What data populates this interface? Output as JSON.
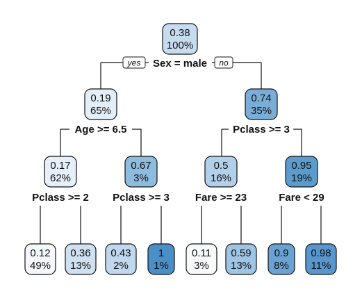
{
  "tree": {
    "branch_labels": {
      "yes": "yes",
      "no": "no"
    },
    "nodes": [
      {
        "id": "n1",
        "value": "0.38",
        "percent": "100%",
        "fill": "#c8dcf0",
        "split": "Sex = male"
      },
      {
        "id": "n2",
        "value": "0.19",
        "percent": "65%",
        "fill": "#e3eef9",
        "split": "Age >= 6.5"
      },
      {
        "id": "n3",
        "value": "0.74",
        "percent": "35%",
        "fill": "#7aaed6",
        "split": "Pclass >= 3"
      },
      {
        "id": "n4",
        "value": "0.17",
        "percent": "62%",
        "fill": "#e6f0fa",
        "split": "Pclass >= 2"
      },
      {
        "id": "n5",
        "value": "0.67",
        "percent": "3%",
        "fill": "#8ebcde",
        "split": "Pclass >= 3"
      },
      {
        "id": "n6",
        "value": "0.5",
        "percent": "16%",
        "fill": "#b2d0ea",
        "split": "Fare >= 23"
      },
      {
        "id": "n7",
        "value": "0.95",
        "percent": "19%",
        "fill": "#5c9ccd",
        "split": "Fare < 29"
      },
      {
        "id": "n8",
        "value": "0.12",
        "percent": "49%",
        "fill": "#f4f8fd"
      },
      {
        "id": "n9",
        "value": "0.36",
        "percent": "13%",
        "fill": "#cfe0f1"
      },
      {
        "id": "n10",
        "value": "0.43",
        "percent": "2%",
        "fill": "#c0d7ed"
      },
      {
        "id": "n11",
        "value": "1",
        "percent": "1%",
        "fill": "#4b8fc8"
      },
      {
        "id": "n12",
        "value": "0.11",
        "percent": "3%",
        "fill": "#f7fafd"
      },
      {
        "id": "n13",
        "value": "0.59",
        "percent": "13%",
        "fill": "#9fc5e5"
      },
      {
        "id": "n14",
        "value": "0.9",
        "percent": "8%",
        "fill": "#6aa3d3"
      },
      {
        "id": "n15",
        "value": "0.98",
        "percent": "11%",
        "fill": "#5897cd"
      }
    ]
  }
}
